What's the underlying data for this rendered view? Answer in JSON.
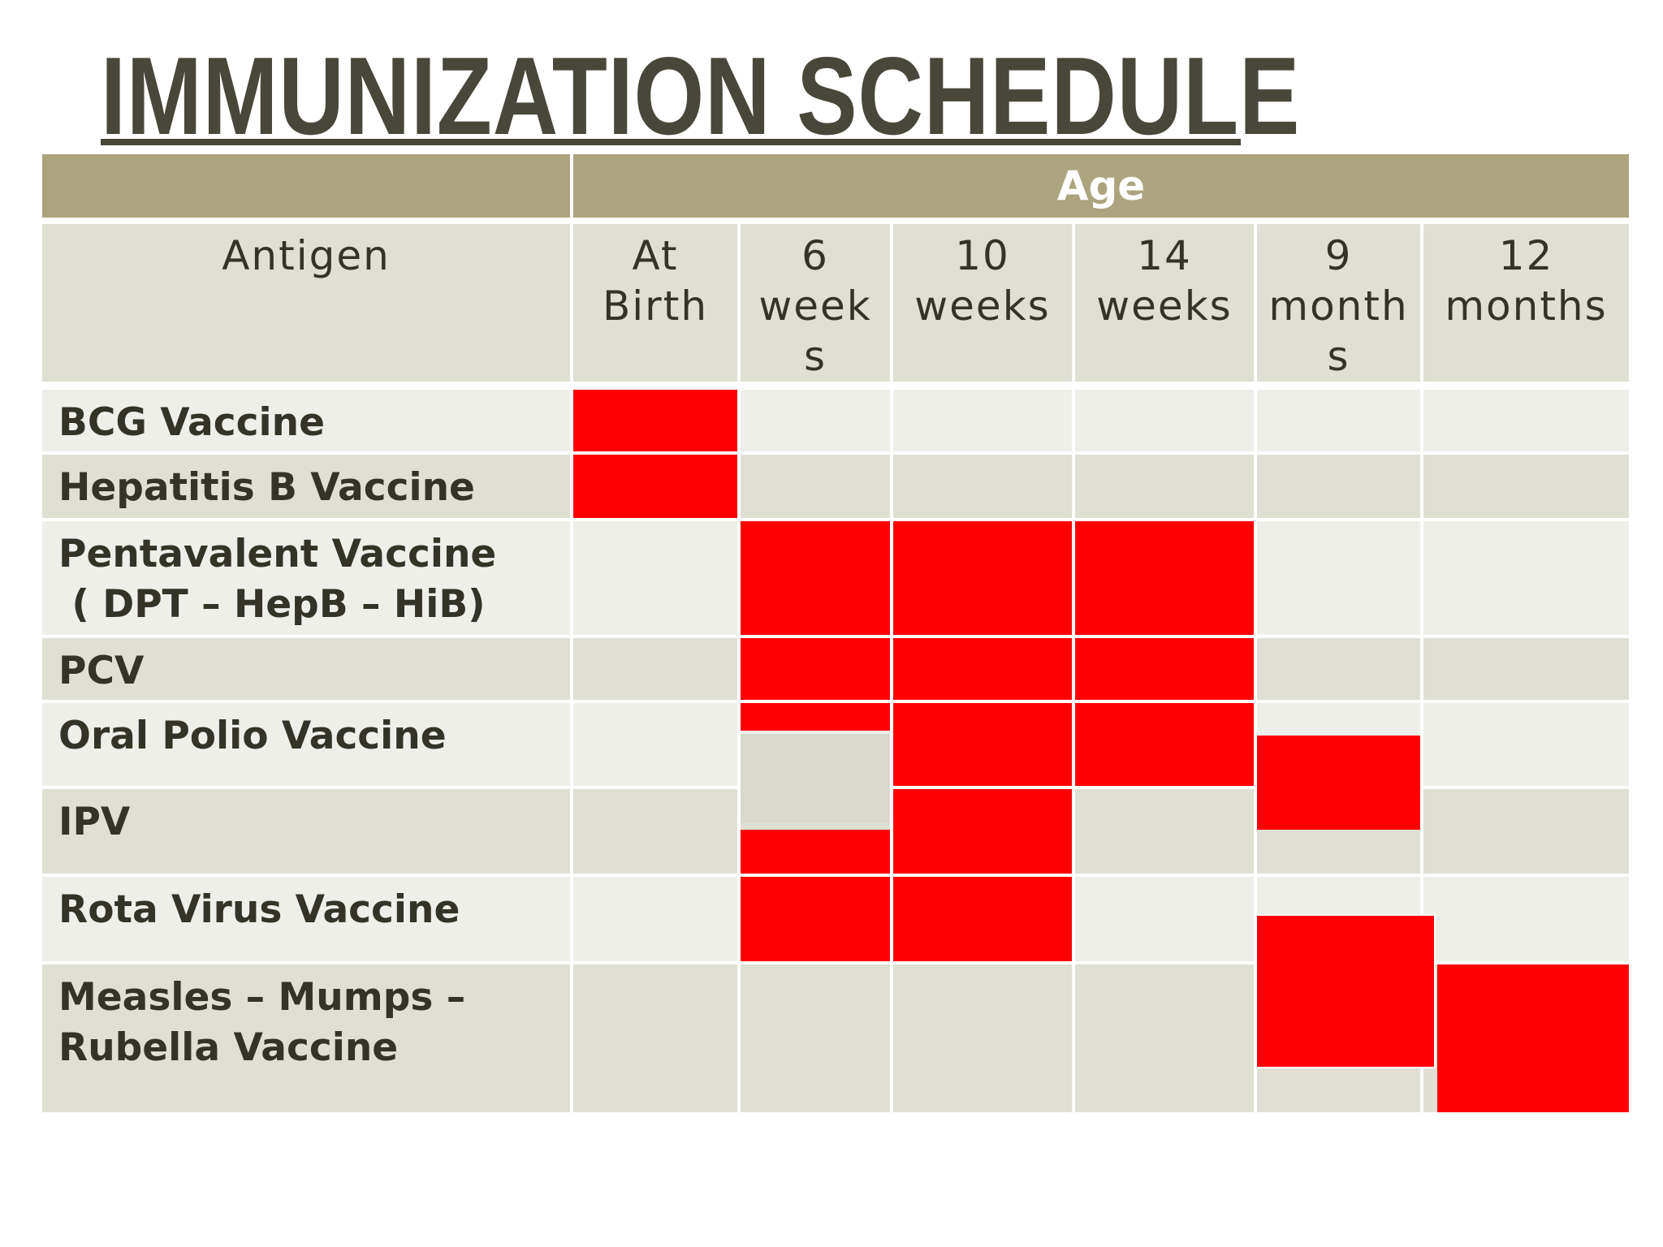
{
  "title": "IMMUNIZATION SCHEDULE",
  "colors": {
    "header_band": "#aba47e",
    "header_row": "#dfdfd4",
    "row_light": "#efefea",
    "row_dark": "#dfdfd4",
    "mark": "#ff0000",
    "title_text": "#48473a"
  },
  "table": {
    "group_header": "Age",
    "antigen_header": "Antigen",
    "age_columns": [
      "At\nBirth",
      "6\nweek\ns",
      "10\nweeks",
      "14\nweeks",
      "9\nmonth\ns",
      "12\nmonths"
    ],
    "rows": [
      {
        "antigen": "BCG Vaccine"
      },
      {
        "antigen": "Hepatitis B Vaccine"
      },
      {
        "antigen": "Pentavalent Vaccine\n ( DPT – HepB – HiB)"
      },
      {
        "antigen": "PCV"
      },
      {
        "antigen": "Oral Polio Vaccine"
      },
      {
        "antigen": "IPV"
      },
      {
        "antigen": "Rota Virus Vaccine"
      },
      {
        "antigen": "Measles – Mumps –\nRubella Vaccine"
      }
    ]
  }
}
